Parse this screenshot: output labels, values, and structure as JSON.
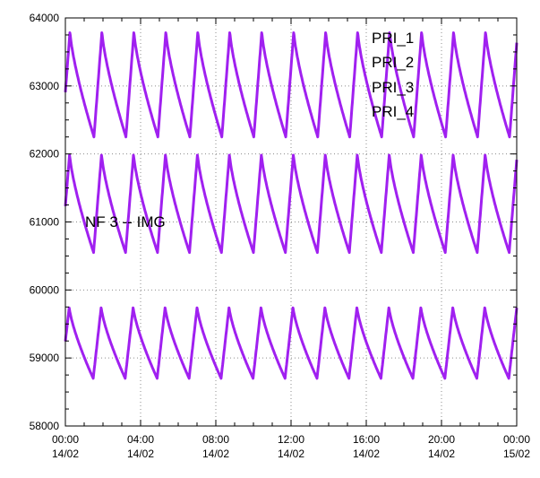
{
  "chart_data": {
    "type": "line",
    "title": "",
    "xlabel": "",
    "ylabel": "",
    "ylim": [
      58000,
      64000
    ],
    "xlim_hours": [
      0,
      24
    ],
    "y_ticks": [
      "64000",
      "63000",
      "62000",
      "61000",
      "60000",
      "59000",
      "58000"
    ],
    "y_tick_values": [
      64000,
      63000,
      62000,
      61000,
      60000,
      59000,
      58000
    ],
    "x_ticks": [
      {
        "time": "00:00",
        "date": "14/02"
      },
      {
        "time": "04:00",
        "date": "14/02"
      },
      {
        "time": "08:00",
        "date": "14/02"
      },
      {
        "time": "12:00",
        "date": "14/02"
      },
      {
        "time": "16:00",
        "date": "14/02"
      },
      {
        "time": "20:00",
        "date": "14/02"
      },
      {
        "time": "00:00",
        "date": "15/02"
      }
    ],
    "grid": true,
    "grid_style": "dotted",
    "legend_position": "top-right",
    "legend": [
      "PRI_1",
      "PRI_2",
      "PRI_3",
      "PRI_4"
    ],
    "annotation": "NF 3 -- IMG",
    "series_color": "#a020f0",
    "cycle_period_hours": 1.7,
    "bands": [
      {
        "peak": 63800,
        "trough": 62250
      },
      {
        "peak": 62000,
        "trough": 60550
      },
      {
        "peak": 59750,
        "trough": 58700
      }
    ]
  }
}
